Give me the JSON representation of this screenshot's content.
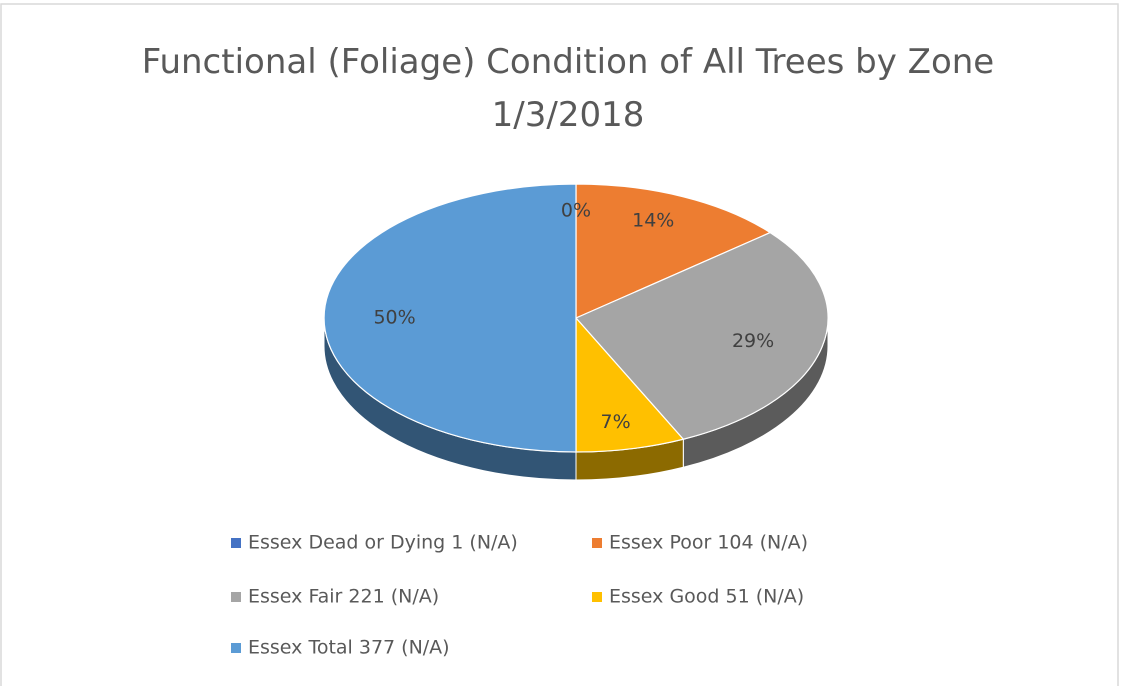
{
  "chart_data": {
    "type": "pie3d",
    "title": "Functional (Foliage) Condition of All Trees by Zone 1/3/2018",
    "series": [
      {
        "name": "Essex Dead or Dying 1 (N/A)",
        "color": "#4472c4"
      },
      {
        "name": "Essex Poor 104 (N/A)",
        "color": "#ed7d31"
      },
      {
        "name": "Essex Fair 221 (N/A)",
        "color": "#a5a5a5"
      },
      {
        "name": "Essex Good 51 (N/A)",
        "color": "#ffc000"
      },
      {
        "name": "Essex Total 377 (N/A)",
        "color": "#5b9bd5"
      }
    ],
    "values": [
      0,
      14,
      29,
      7,
      50
    ],
    "value_labels": [
      "0%",
      "14%",
      "29%",
      "7%",
      "50%"
    ],
    "legend": "bottom"
  }
}
